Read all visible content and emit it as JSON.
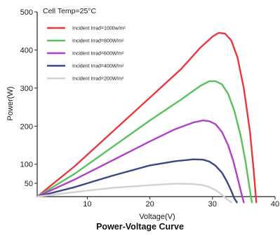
{
  "chart_data": {
    "type": "line",
    "title": "Power-Voltage Curve",
    "xlabel": "Voltage(V)",
    "ylabel": "Power(W)",
    "annotation": "Cell Temp=25°C",
    "xlim": [
      2,
      40
    ],
    "ylim": [
      15,
      500
    ],
    "x_ticks": [
      10,
      20,
      30,
      40
    ],
    "y_ticks": [
      50,
      100,
      200,
      300,
      400,
      500
    ],
    "grid": false,
    "legend_position": "top-left",
    "series": [
      {
        "name": "Incident Irrad=1000w/m²",
        "color": "#e8383d",
        "x": [
          2,
          8,
          14,
          20,
          25,
          28,
          30,
          31,
          32,
          33,
          34,
          35,
          36,
          36.6,
          37
        ],
        "y": [
          15,
          95,
          185,
          275,
          350,
          405,
          435,
          445,
          443,
          425,
          380,
          300,
          185,
          80,
          0
        ]
      },
      {
        "name": "Incident Irrad=800W/m²",
        "color": "#57c15c",
        "x": [
          2,
          8,
          14,
          20,
          25,
          28,
          29.5,
          30.5,
          31.5,
          32.5,
          33.5,
          34.5,
          35.3,
          35.9,
          36.3
        ],
        "y": [
          15,
          75,
          145,
          215,
          270,
          305,
          318,
          318,
          310,
          285,
          240,
          175,
          105,
          40,
          0
        ]
      },
      {
        "name": "Incident Irrad=600W/m²",
        "color": "#b23fc9",
        "x": [
          2,
          8,
          14,
          20,
          24,
          27,
          28.5,
          29.5,
          30.5,
          31.5,
          32.5,
          33.3,
          34,
          34.6,
          35
        ],
        "y": [
          15,
          60,
          110,
          160,
          192,
          210,
          215,
          213,
          205,
          185,
          150,
          110,
          65,
          25,
          0
        ]
      },
      {
        "name": "Incident Irrad=400W/m²",
        "color": "#3b4784",
        "x": [
          2,
          8,
          14,
          20,
          24,
          27,
          28.5,
          29.5,
          30.5,
          31.5,
          32.3,
          33,
          33.5,
          33.9
        ],
        "y": [
          15,
          40,
          70,
          97,
          108,
          113,
          112,
          107,
          96,
          78,
          55,
          30,
          10,
          0
        ]
      },
      {
        "name": "Incident Irrad=200W/m²",
        "color": "#d2d2d2",
        "x": [
          2,
          8,
          14,
          20,
          24,
          27,
          28.5,
          29.5,
          30.5,
          31.5,
          32.3,
          33
        ],
        "y": [
          15,
          27,
          38,
          45,
          49,
          48,
          45,
          40,
          32,
          20,
          8,
          0
        ]
      }
    ]
  }
}
